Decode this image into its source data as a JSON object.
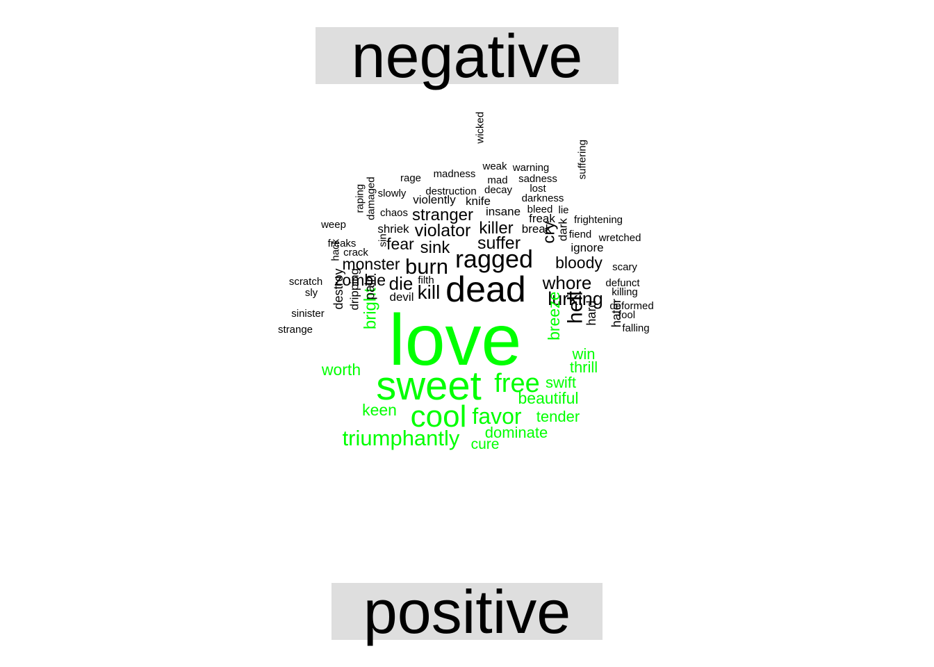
{
  "chart_data": {
    "type": "wordcloud",
    "groups": [
      {
        "name": "negative",
        "color": "#000000"
      },
      {
        "name": "positive",
        "color": "#00ff00"
      }
    ],
    "words": [
      {
        "text": "love",
        "group": "positive",
        "weight": 10
      },
      {
        "text": "dead",
        "group": "negative",
        "weight": 5.2
      },
      {
        "text": "sweet",
        "group": "positive",
        "weight": 5.8
      },
      {
        "text": "ragged",
        "group": "negative",
        "weight": 3.6
      },
      {
        "text": "cool",
        "group": "positive",
        "weight": 4.4
      },
      {
        "text": "free",
        "group": "positive",
        "weight": 3.8
      },
      {
        "text": "burn",
        "group": "negative",
        "weight": 3.1
      },
      {
        "text": "favor",
        "group": "positive",
        "weight": 3.2
      },
      {
        "text": "triumphantly",
        "group": "positive",
        "weight": 3.1
      },
      {
        "text": "hell",
        "group": "negative",
        "weight": 3.0
      },
      {
        "text": "whore",
        "group": "negative",
        "weight": 2.6
      },
      {
        "text": "lurking",
        "group": "negative",
        "weight": 2.7
      },
      {
        "text": "kill",
        "group": "negative",
        "weight": 2.8
      },
      {
        "text": "die",
        "group": "negative",
        "weight": 2.6
      },
      {
        "text": "suffer",
        "group": "negative",
        "weight": 2.5
      },
      {
        "text": "violator",
        "group": "negative",
        "weight": 2.5
      },
      {
        "text": "killer",
        "group": "negative",
        "weight": 2.4
      },
      {
        "text": "stranger",
        "group": "negative",
        "weight": 2.4
      },
      {
        "text": "sink",
        "group": "negative",
        "weight": 2.4
      },
      {
        "text": "fear",
        "group": "negative",
        "weight": 2.3
      },
      {
        "text": "monster",
        "group": "negative",
        "weight": 2.3
      },
      {
        "text": "zombie",
        "group": "negative",
        "weight": 2.3
      },
      {
        "text": "bloody",
        "group": "negative",
        "weight": 2.3
      },
      {
        "text": "cry",
        "group": "negative",
        "weight": 2.4
      },
      {
        "text": "bright",
        "group": "positive",
        "weight": 2.4
      },
      {
        "text": "breeze",
        "group": "positive",
        "weight": 2.3
      },
      {
        "text": "beautiful",
        "group": "positive",
        "weight": 2.3
      },
      {
        "text": "worth",
        "group": "positive",
        "weight": 2.3
      },
      {
        "text": "keen",
        "group": "positive",
        "weight": 2.3
      },
      {
        "text": "tender",
        "group": "positive",
        "weight": 2.2
      },
      {
        "text": "dominate",
        "group": "positive",
        "weight": 2.2
      },
      {
        "text": "swift",
        "group": "positive",
        "weight": 2.2
      },
      {
        "text": "thrill",
        "group": "positive",
        "weight": 2.2
      },
      {
        "text": "win",
        "group": "positive",
        "weight": 2.2
      },
      {
        "text": "cure",
        "group": "positive",
        "weight": 2.1
      },
      {
        "text": "pain",
        "group": "negative",
        "weight": 1.9
      },
      {
        "text": "destroy",
        "group": "negative",
        "weight": 1.8
      },
      {
        "text": "dripping",
        "group": "negative",
        "weight": 1.7
      },
      {
        "text": "hard",
        "group": "negative",
        "weight": 1.8
      },
      {
        "text": "hater",
        "group": "negative",
        "weight": 1.8
      },
      {
        "text": "dark",
        "group": "negative",
        "weight": 1.7
      },
      {
        "text": "devil",
        "group": "negative",
        "weight": 1.7
      },
      {
        "text": "violently",
        "group": "negative",
        "weight": 1.7
      },
      {
        "text": "knife",
        "group": "negative",
        "weight": 1.7
      },
      {
        "text": "insane",
        "group": "negative",
        "weight": 1.7
      },
      {
        "text": "shriek",
        "group": "negative",
        "weight": 1.7
      },
      {
        "text": "freak",
        "group": "negative",
        "weight": 1.7
      },
      {
        "text": "break",
        "group": "negative",
        "weight": 1.7
      },
      {
        "text": "ignore",
        "group": "negative",
        "weight": 1.7
      },
      {
        "text": "wicked",
        "group": "negative",
        "weight": 1.5
      },
      {
        "text": "weak",
        "group": "negative",
        "weight": 1.5
      },
      {
        "text": "warning",
        "group": "negative",
        "weight": 1.5
      },
      {
        "text": "madness",
        "group": "negative",
        "weight": 1.5
      },
      {
        "text": "rage",
        "group": "negative",
        "weight": 1.5
      },
      {
        "text": "mad",
        "group": "negative",
        "weight": 1.5
      },
      {
        "text": "sadness",
        "group": "negative",
        "weight": 1.5
      },
      {
        "text": "suffering",
        "group": "negative",
        "weight": 1.5
      },
      {
        "text": "slowly",
        "group": "negative",
        "weight": 1.5
      },
      {
        "text": "destruction",
        "group": "negative",
        "weight": 1.5
      },
      {
        "text": "decay",
        "group": "negative",
        "weight": 1.5
      },
      {
        "text": "lost",
        "group": "negative",
        "weight": 1.5
      },
      {
        "text": "darkness",
        "group": "negative",
        "weight": 1.5
      },
      {
        "text": "raping",
        "group": "negative",
        "weight": 1.5
      },
      {
        "text": "damaged",
        "group": "negative",
        "weight": 1.5
      },
      {
        "text": "chaos",
        "group": "negative",
        "weight": 1.5
      },
      {
        "text": "bleed",
        "group": "negative",
        "weight": 1.5
      },
      {
        "text": "lie",
        "group": "negative",
        "weight": 1.5
      },
      {
        "text": "weep",
        "group": "negative",
        "weight": 1.5
      },
      {
        "text": "frightening",
        "group": "negative",
        "weight": 1.5
      },
      {
        "text": "fiend",
        "group": "negative",
        "weight": 1.5
      },
      {
        "text": "wretched",
        "group": "negative",
        "weight": 1.5
      },
      {
        "text": "freaks",
        "group": "negative",
        "weight": 1.5
      },
      {
        "text": "sin",
        "group": "negative",
        "weight": 1.5
      },
      {
        "text": "crack",
        "group": "negative",
        "weight": 1.5
      },
      {
        "text": "hack",
        "group": "negative",
        "weight": 1.5
      },
      {
        "text": "scary",
        "group": "negative",
        "weight": 1.5
      },
      {
        "text": "scratch",
        "group": "negative",
        "weight": 1.5
      },
      {
        "text": "filth",
        "group": "negative",
        "weight": 1.5
      },
      {
        "text": "defunct",
        "group": "negative",
        "weight": 1.5
      },
      {
        "text": "sly",
        "group": "negative",
        "weight": 1.5
      },
      {
        "text": "killing",
        "group": "negative",
        "weight": 1.5
      },
      {
        "text": "deformed",
        "group": "negative",
        "weight": 1.5
      },
      {
        "text": "sinister",
        "group": "negative",
        "weight": 1.5
      },
      {
        "text": "fool",
        "group": "negative",
        "weight": 1.5
      },
      {
        "text": "strange",
        "group": "negative",
        "weight": 1.5
      },
      {
        "text": "falling",
        "group": "negative",
        "weight": 1.5
      }
    ]
  }
}
